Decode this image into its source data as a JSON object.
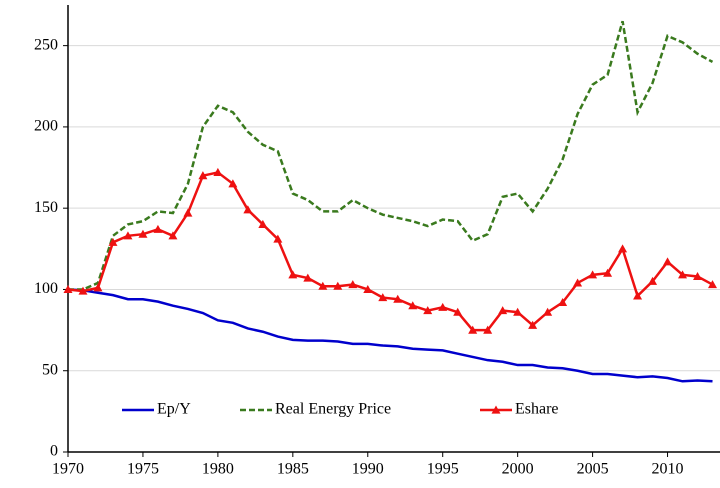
{
  "chart_data": {
    "type": "line",
    "x": [
      1970,
      1971,
      1972,
      1973,
      1974,
      1975,
      1976,
      1977,
      1978,
      1979,
      1980,
      1981,
      1982,
      1983,
      1984,
      1985,
      1986,
      1987,
      1988,
      1989,
      1990,
      1991,
      1992,
      1993,
      1994,
      1995,
      1996,
      1997,
      1998,
      1999,
      2000,
      2001,
      2002,
      2003,
      2004,
      2005,
      2006,
      2007,
      2008,
      2009,
      2010,
      2011,
      2012,
      2013
    ],
    "series": [
      {
        "name": "Ep/Y",
        "color": "#0000cc",
        "style": "solid",
        "marker": "none",
        "values": [
          100,
          99.5,
          98,
          96.5,
          94,
          94,
          92.5,
          90,
          88,
          85.5,
          81,
          79.5,
          76,
          74,
          71,
          69,
          68.5,
          68.5,
          68,
          66.5,
          66.5,
          65.5,
          65,
          63.5,
          63,
          62.5,
          60.5,
          58.5,
          56.5,
          55.5,
          53.5,
          53.5,
          52,
          51.5,
          50,
          48,
          48,
          47,
          46,
          46.5,
          45.5,
          43.5,
          44,
          43.5
        ]
      },
      {
        "name": "Real Energy Price",
        "color": "#3a7a1e",
        "style": "dashed",
        "marker": "none",
        "values": [
          100,
          100,
          104,
          133,
          140,
          142,
          148,
          147,
          165,
          200,
          213,
          209,
          197,
          189,
          185,
          159,
          155,
          148,
          148,
          155,
          150,
          146,
          144,
          142,
          139,
          143,
          142,
          130,
          134,
          157,
          159,
          148,
          162,
          180,
          208,
          226,
          232,
          265,
          209,
          227,
          256,
          252,
          245,
          240
        ]
      },
      {
        "name": "Eshare",
        "color": "#ee1111",
        "style": "solid",
        "marker": "triangle",
        "values": [
          100,
          99,
          101,
          129,
          133,
          134,
          137,
          133,
          147,
          170,
          172,
          165,
          149,
          140,
          131,
          109,
          107,
          102,
          102,
          103,
          100,
          95,
          94,
          90,
          87,
          89,
          86,
          75,
          75,
          87,
          86,
          78,
          86,
          92,
          104,
          109,
          110,
          125,
          96,
          105,
          117,
          109,
          108,
          103
        ]
      }
    ],
    "xlim": [
      1970,
      2013.5
    ],
    "xticks": [
      1970,
      1975,
      1980,
      1985,
      1990,
      1995,
      2000,
      2005,
      2010
    ],
    "ylim": [
      0,
      275
    ],
    "yticks": [
      0,
      50,
      100,
      150,
      200,
      250
    ],
    "grid": true,
    "legend": "bottom"
  }
}
